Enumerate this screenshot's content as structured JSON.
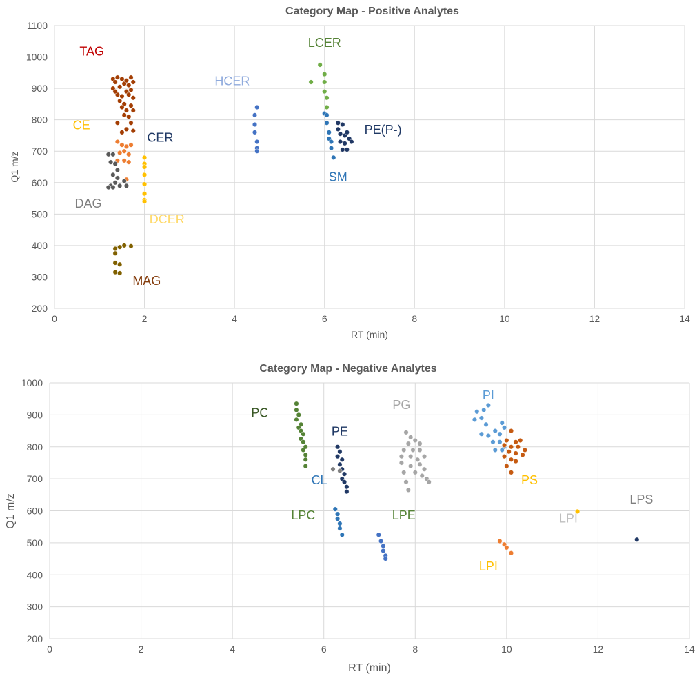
{
  "chart_data": [
    {
      "type": "scatter",
      "title": "Category Map - Positive Analytes",
      "xlabel": "RT (min)",
      "ylabel": "Q1 m/z",
      "xlim": [
        0,
        14
      ],
      "ylim": [
        200,
        1100
      ],
      "xticks": [
        0,
        2,
        4,
        6,
        8,
        10,
        12,
        14
      ],
      "yticks": [
        200,
        300,
        400,
        500,
        600,
        700,
        800,
        900,
        1000,
        1100
      ],
      "grid": true,
      "series": [
        {
          "name": "TAG",
          "color": "#a33e04",
          "points": [
            [
              1.3,
              930
            ],
            [
              1.35,
              920
            ],
            [
              1.4,
              935
            ],
            [
              1.45,
              905
            ],
            [
              1.5,
              930
            ],
            [
              1.55,
              915
            ],
            [
              1.6,
              890
            ],
            [
              1.3,
              900
            ],
            [
              1.4,
              880
            ],
            [
              1.5,
              875
            ],
            [
              1.6,
              925
            ],
            [
              1.65,
              910
            ],
            [
              1.7,
              935
            ],
            [
              1.75,
              920
            ],
            [
              1.35,
              890
            ],
            [
              1.45,
              860
            ],
            [
              1.55,
              850
            ],
            [
              1.65,
              880
            ],
            [
              1.7,
              895
            ],
            [
              1.75,
              870
            ],
            [
              1.5,
              840
            ],
            [
              1.6,
              830
            ],
            [
              1.7,
              845
            ],
            [
              1.75,
              830
            ],
            [
              1.65,
              810
            ],
            [
              1.55,
              815
            ],
            [
              1.7,
              790
            ],
            [
              1.6,
              770
            ],
            [
              1.75,
              765
            ],
            [
              1.4,
              790
            ],
            [
              1.5,
              760
            ]
          ]
        },
        {
          "name": "CE",
          "color": "#ed7d31",
          "points": [
            [
              1.4,
              730
            ],
            [
              1.5,
              720
            ],
            [
              1.6,
              715
            ],
            [
              1.55,
              700
            ],
            [
              1.65,
              690
            ],
            [
              1.7,
              720
            ],
            [
              1.45,
              695
            ],
            [
              1.55,
              670
            ],
            [
              1.65,
              665
            ],
            [
              1.4,
              670
            ],
            [
              1.6,
              610
            ]
          ]
        },
        {
          "name": "DAG",
          "color": "#595959",
          "points": [
            [
              1.2,
              690
            ],
            [
              1.3,
              690
            ],
            [
              1.25,
              665
            ],
            [
              1.35,
              660
            ],
            [
              1.4,
              640
            ],
            [
              1.3,
              625
            ],
            [
              1.4,
              615
            ],
            [
              1.35,
              600
            ],
            [
              1.25,
              590
            ],
            [
              1.2,
              585
            ],
            [
              1.3,
              585
            ],
            [
              1.45,
              590
            ],
            [
              1.55,
              605
            ],
            [
              1.6,
              590
            ]
          ]
        },
        {
          "name": "DCER",
          "color": "#ffc000",
          "points": [
            [
              2.0,
              680
            ],
            [
              2.0,
              660
            ],
            [
              2.0,
              650
            ],
            [
              2.0,
              625
            ],
            [
              2.0,
              595
            ],
            [
              2.0,
              565
            ],
            [
              2.0,
              545
            ],
            [
              2.0,
              540
            ]
          ]
        },
        {
          "name": "MAG",
          "color": "#806000",
          "points": [
            [
              1.35,
              390
            ],
            [
              1.45,
              395
            ],
            [
              1.55,
              400
            ],
            [
              1.7,
              398
            ],
            [
              1.35,
              375
            ],
            [
              1.35,
              345
            ],
            [
              1.45,
              340
            ],
            [
              1.35,
              315
            ],
            [
              1.45,
              312
            ]
          ]
        },
        {
          "name": "HCER",
          "color": "#4472c4",
          "points": [
            [
              4.5,
              840
            ],
            [
              4.45,
              815
            ],
            [
              4.45,
              785
            ],
            [
              4.45,
              760
            ],
            [
              4.5,
              730
            ],
            [
              4.5,
              710
            ],
            [
              4.5,
              700
            ]
          ]
        },
        {
          "name": "LCER",
          "color": "#70ad47",
          "points": [
            [
              5.7,
              920
            ],
            [
              5.9,
              975
            ],
            [
              6.0,
              945
            ],
            [
              6.0,
              920
            ],
            [
              6.0,
              890
            ],
            [
              6.05,
              870
            ],
            [
              6.05,
              840
            ]
          ]
        },
        {
          "name": "SM",
          "color": "#2e75b6",
          "points": [
            [
              6.0,
              820
            ],
            [
              6.05,
              815
            ],
            [
              6.05,
              790
            ],
            [
              6.1,
              760
            ],
            [
              6.1,
              740
            ],
            [
              6.15,
              730
            ],
            [
              6.15,
              710
            ],
            [
              6.2,
              680
            ]
          ]
        },
        {
          "name": "PE(P-)",
          "color": "#203864",
          "points": [
            [
              6.3,
              790
            ],
            [
              6.4,
              785
            ],
            [
              6.3,
              770
            ],
            [
              6.35,
              755
            ],
            [
              6.45,
              750
            ],
            [
              6.5,
              760
            ],
            [
              6.35,
              730
            ],
            [
              6.45,
              725
            ],
            [
              6.55,
              740
            ],
            [
              6.6,
              730
            ],
            [
              6.4,
              705
            ],
            [
              6.5,
              705
            ]
          ]
        }
      ],
      "annotations": [
        {
          "text": "TAG",
          "x": 0.83,
          "y": 1005,
          "color": "#c00000"
        },
        {
          "text": "CE",
          "x": 0.6,
          "y": 770,
          "color": "#ffc000"
        },
        {
          "text": "DAG",
          "x": 0.75,
          "y": 520,
          "color": "#7f7f7f"
        },
        {
          "text": "CER",
          "x": 2.35,
          "y": 730,
          "color": "#1f3864"
        },
        {
          "text": "DCER",
          "x": 2.5,
          "y": 470,
          "color": "#ffd966"
        },
        {
          "text": "MAG",
          "x": 2.05,
          "y": 275,
          "color": "#843c0c"
        },
        {
          "text": "HCER",
          "x": 3.95,
          "y": 910,
          "color": "#8faadc"
        },
        {
          "text": "LCER",
          "x": 6.0,
          "y": 1032,
          "color": "#548235"
        },
        {
          "text": "SM",
          "x": 6.3,
          "y": 605,
          "color": "#2e75b6"
        },
        {
          "text": "PE(P-)",
          "x": 7.3,
          "y": 755,
          "color": "#1f3864"
        }
      ]
    },
    {
      "type": "scatter",
      "title": "Category Map - Negative Analytes",
      "xlabel": "RT (min)",
      "ylabel": "Q1 m/z",
      "xlim": [
        0,
        14
      ],
      "ylim": [
        200,
        1000
      ],
      "xticks": [
        0,
        2,
        4,
        6,
        8,
        10,
        12,
        14
      ],
      "yticks": [
        200,
        300,
        400,
        500,
        600,
        700,
        800,
        900,
        1000
      ],
      "grid": true,
      "series": [
        {
          "name": "PC",
          "color": "#548235",
          "points": [
            [
              5.4,
              935
            ],
            [
              5.4,
              915
            ],
            [
              5.45,
              900
            ],
            [
              5.4,
              885
            ],
            [
              5.5,
              870
            ],
            [
              5.45,
              860
            ],
            [
              5.5,
              850
            ],
            [
              5.55,
              840
            ],
            [
              5.5,
              825
            ],
            [
              5.55,
              815
            ],
            [
              5.6,
              800
            ],
            [
              5.55,
              790
            ],
            [
              5.6,
              775
            ],
            [
              5.6,
              760
            ],
            [
              5.6,
              740
            ]
          ]
        },
        {
          "name": "PE",
          "color": "#203864",
          "points": [
            [
              6.3,
              800
            ],
            [
              6.35,
              785
            ],
            [
              6.3,
              770
            ],
            [
              6.4,
              760
            ],
            [
              6.35,
              745
            ],
            [
              6.4,
              730
            ],
            [
              6.45,
              715
            ],
            [
              6.4,
              700
            ],
            [
              6.45,
              690
            ],
            [
              6.5,
              675
            ],
            [
              6.5,
              660
            ]
          ]
        },
        {
          "name": "CL",
          "color": "#7f7f7f",
          "points": [
            [
              6.2,
              730
            ],
            [
              6.35,
              725
            ]
          ]
        },
        {
          "name": "LPC",
          "color": "#2e75b6",
          "points": [
            [
              6.25,
              605
            ],
            [
              6.3,
              590
            ],
            [
              6.3,
              575
            ],
            [
              6.35,
              560
            ],
            [
              6.35,
              545
            ],
            [
              6.4,
              525
            ]
          ]
        },
        {
          "name": "LPE",
          "color": "#4472c4",
          "points": [
            [
              7.2,
              525
            ],
            [
              7.25,
              505
            ],
            [
              7.3,
              490
            ],
            [
              7.3,
              475
            ],
            [
              7.35,
              460
            ],
            [
              7.35,
              450
            ]
          ]
        },
        {
          "name": "PG",
          "color": "#a6a6a6",
          "points": [
            [
              7.8,
              845
            ],
            [
              7.9,
              830
            ],
            [
              7.85,
              810
            ],
            [
              8.0,
              820
            ],
            [
              8.1,
              810
            ],
            [
              7.75,
              790
            ],
            [
              7.95,
              790
            ],
            [
              8.1,
              790
            ],
            [
              7.7,
              770
            ],
            [
              7.9,
              770
            ],
            [
              8.05,
              760
            ],
            [
              8.2,
              770
            ],
            [
              7.7,
              750
            ],
            [
              7.9,
              740
            ],
            [
              8.1,
              745
            ],
            [
              8.2,
              730
            ],
            [
              7.75,
              720
            ],
            [
              8.0,
              720
            ],
            [
              8.15,
              710
            ],
            [
              8.25,
              700
            ],
            [
              7.8,
              690
            ],
            [
              7.85,
              665
            ],
            [
              8.3,
              690
            ]
          ]
        },
        {
          "name": "PI",
          "color": "#5b9bd5",
          "points": [
            [
              9.6,
              930
            ],
            [
              9.5,
              915
            ],
            [
              9.35,
              910
            ],
            [
              9.45,
              890
            ],
            [
              9.3,
              885
            ],
            [
              9.55,
              870
            ],
            [
              9.9,
              875
            ],
            [
              9.95,
              860
            ],
            [
              9.45,
              840
            ],
            [
              9.6,
              835
            ],
            [
              9.75,
              850
            ],
            [
              9.85,
              840
            ],
            [
              9.7,
              815
            ],
            [
              9.85,
              815
            ],
            [
              9.95,
              800
            ],
            [
              9.75,
              790
            ],
            [
              9.9,
              790
            ]
          ]
        },
        {
          "name": "PS",
          "color": "#c55a11",
          "points": [
            [
              10.1,
              850
            ],
            [
              10.0,
              820
            ],
            [
              10.2,
              815
            ],
            [
              10.3,
              820
            ],
            [
              9.95,
              805
            ],
            [
              10.1,
              800
            ],
            [
              10.25,
              800
            ],
            [
              10.4,
              790
            ],
            [
              10.05,
              785
            ],
            [
              10.2,
              780
            ],
            [
              10.35,
              775
            ],
            [
              9.95,
              770
            ],
            [
              10.1,
              760
            ],
            [
              10.2,
              755
            ],
            [
              10.0,
              740
            ],
            [
              10.1,
              720
            ]
          ]
        },
        {
          "name": "LPS",
          "color": "#203864",
          "points": [
            [
              12.85,
              510
            ]
          ]
        },
        {
          "name": "LPI",
          "color": "#ed7d31",
          "points": [
            [
              9.85,
              505
            ],
            [
              9.95,
              495
            ],
            [
              10.0,
              485
            ],
            [
              10.1,
              468
            ]
          ]
        },
        {
          "name": "LPI",
          "color": "#ffc000",
          "points": [
            [
              11.55,
              598
            ]
          ]
        }
      ],
      "annotations": [
        {
          "text": "PC",
          "x": 4.6,
          "y": 893,
          "color": "#375623"
        },
        {
          "text": "PE",
          "x": 6.35,
          "y": 835,
          "color": "#1f3864"
        },
        {
          "text": "CL",
          "x": 5.9,
          "y": 683,
          "color": "#2e75b6"
        },
        {
          "text": "PG",
          "x": 7.7,
          "y": 918,
          "color": "#a6a6a6"
        },
        {
          "text": "PI",
          "x": 9.6,
          "y": 948,
          "color": "#5b9bd5"
        },
        {
          "text": "PS",
          "x": 10.5,
          "y": 683,
          "color": "#ffc000"
        },
        {
          "text": "LPC",
          "x": 5.55,
          "y": 573,
          "color": "#548235"
        },
        {
          "text": "LPE",
          "x": 7.75,
          "y": 573,
          "color": "#548235"
        },
        {
          "text": "LPI",
          "x": 11.35,
          "y": 563,
          "color": "#bfbfbf"
        },
        {
          "text": "LPS",
          "x": 12.95,
          "y": 623,
          "color": "#7f7f7f"
        },
        {
          "text": "LPI",
          "x": 9.6,
          "y": 413,
          "color": "#ffc000"
        }
      ]
    }
  ]
}
